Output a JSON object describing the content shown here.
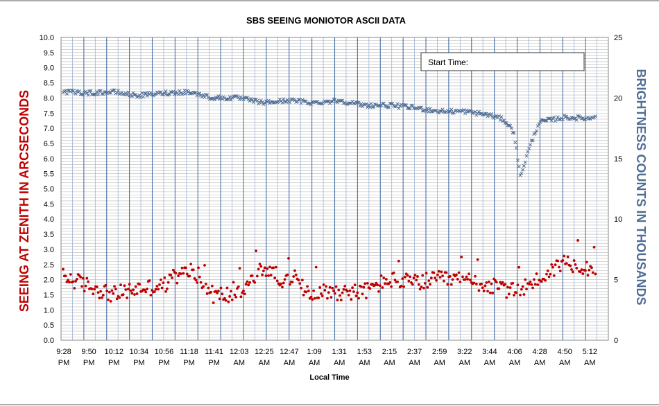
{
  "chart_data": {
    "type": "scatter",
    "title": "SBS SEEING MONIOTOR ASCII DATA",
    "xlabel": "Local Time",
    "ylabel_left": "SEEING AT ZENITH IN ARCSECONDS",
    "ylabel_right": "BRIGHTNESS COUNTS IN THOUSANDS",
    "annotation": "Start Time:",
    "y_left_range": [
      0,
      10
    ],
    "y_left_ticks": [
      "0.0",
      "0.5",
      "1.0",
      "1.5",
      "2.0",
      "2.5",
      "3.0",
      "3.5",
      "4.0",
      "4.5",
      "5.0",
      "5.5",
      "6.0",
      "6.5",
      "7.0",
      "7.5",
      "8.0",
      "8.5",
      "9.0",
      "9.5",
      "10.0"
    ],
    "y_right_range": [
      0,
      25
    ],
    "y_right_ticks": [
      "0",
      "5",
      "10",
      "15",
      "20",
      "25"
    ],
    "x_ticks": [
      {
        "time": "9:28",
        "ampm": "PM"
      },
      {
        "time": "9:50",
        "ampm": "PM"
      },
      {
        "time": "10:12",
        "ampm": "PM"
      },
      {
        "time": "10:34",
        "ampm": "PM"
      },
      {
        "time": "10:56",
        "ampm": "PM"
      },
      {
        "time": "11:18",
        "ampm": "PM"
      },
      {
        "time": "11:41",
        "ampm": "PM"
      },
      {
        "time": "12:03",
        "ampm": "AM"
      },
      {
        "time": "12:25",
        "ampm": "AM"
      },
      {
        "time": "12:47",
        "ampm": "AM"
      },
      {
        "time": "1:09",
        "ampm": "AM"
      },
      {
        "time": "1:31",
        "ampm": "AM"
      },
      {
        "time": "1:53",
        "ampm": "AM"
      },
      {
        "time": "2:15",
        "ampm": "AM"
      },
      {
        "time": "2:37",
        "ampm": "AM"
      },
      {
        "time": "2:59",
        "ampm": "AM"
      },
      {
        "time": "3:22",
        "ampm": "AM"
      },
      {
        "time": "3:44",
        "ampm": "AM"
      },
      {
        "time": "4:06",
        "ampm": "AM"
      },
      {
        "time": "4:28",
        "ampm": "AM"
      },
      {
        "time": "4:50",
        "ampm": "AM"
      },
      {
        "time": "5:12",
        "ampm": "AM"
      }
    ],
    "grid": true,
    "series": [
      {
        "axis": "left",
        "marker": "dot",
        "color": "#c00000",
        "trend": [
          [
            0,
            2.1
          ],
          [
            1,
            1.8
          ],
          [
            2,
            1.5
          ],
          [
            3,
            1.7
          ],
          [
            4,
            1.8
          ],
          [
            5,
            2.3
          ],
          [
            6,
            1.5
          ],
          [
            7,
            1.5
          ],
          [
            8,
            2.4
          ],
          [
            9,
            1.9
          ],
          [
            10,
            1.6
          ],
          [
            11,
            1.6
          ],
          [
            12,
            1.6
          ],
          [
            13,
            2.0
          ],
          [
            14,
            1.9
          ],
          [
            15,
            2.0
          ],
          [
            16,
            2.0
          ],
          [
            17,
            1.8
          ],
          [
            18,
            1.6
          ],
          [
            19,
            2.0
          ],
          [
            20,
            2.6
          ],
          [
            21,
            2.4
          ]
        ]
      },
      {
        "axis": "right",
        "marker": "x",
        "color": "#4f6d94",
        "trend": [
          [
            0,
            20.5
          ],
          [
            1,
            20.4
          ],
          [
            2,
            20.5
          ],
          [
            3,
            20.2
          ],
          [
            4,
            20.4
          ],
          [
            5,
            20.5
          ],
          [
            6,
            20.0
          ],
          [
            7,
            20.0
          ],
          [
            8,
            19.6
          ],
          [
            9,
            19.8
          ],
          [
            10,
            19.6
          ],
          [
            11,
            19.8
          ],
          [
            12,
            19.4
          ],
          [
            13,
            19.4
          ],
          [
            14,
            19.2
          ],
          [
            15,
            18.9
          ],
          [
            16,
            18.9
          ],
          [
            17,
            18.6
          ],
          [
            17.6,
            18.2
          ],
          [
            18,
            17.2
          ],
          [
            18.25,
            13.5
          ],
          [
            18.6,
            15.8
          ],
          [
            19,
            18.0
          ],
          [
            20,
            18.4
          ],
          [
            21,
            18.3
          ],
          [
            21.3,
            18.6
          ]
        ]
      }
    ]
  }
}
